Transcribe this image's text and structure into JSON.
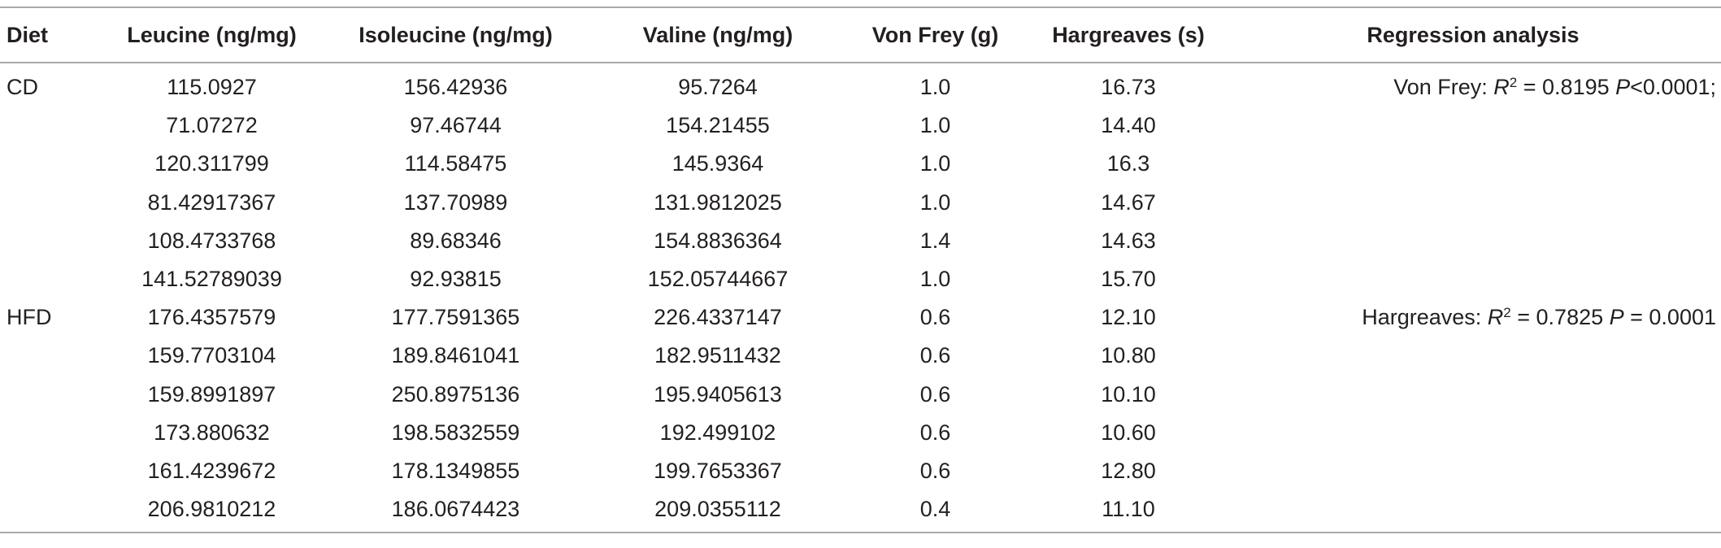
{
  "table": {
    "headers": [
      "Diet",
      "Leucine (ng/mg)",
      "Isoleucine (ng/mg)",
      "Valine (ng/mg)",
      "Von Frey (g)",
      "Hargreaves (s)",
      "Regression analysis"
    ],
    "rows": [
      {
        "diet": "CD",
        "leucine": "115.0927",
        "isoleucine": "156.42936",
        "valine": "95.7264",
        "vonfrey": "1.0",
        "hargreaves": "16.73"
      },
      {
        "diet": "",
        "leucine": "71.07272",
        "isoleucine": "97.46744",
        "valine": "154.21455",
        "vonfrey": "1.0",
        "hargreaves": "14.40"
      },
      {
        "diet": "",
        "leucine": "120.311799",
        "isoleucine": "114.58475",
        "valine": "145.9364",
        "vonfrey": "1.0",
        "hargreaves": "16.3"
      },
      {
        "diet": "",
        "leucine": "81.42917367",
        "isoleucine": "137.70989",
        "valine": "131.9812025",
        "vonfrey": "1.0",
        "hargreaves": "14.67"
      },
      {
        "diet": "",
        "leucine": "108.4733768",
        "isoleucine": "89.68346",
        "valine": "154.8836364",
        "vonfrey": "1.4",
        "hargreaves": "14.63"
      },
      {
        "diet": "",
        "leucine": "141.52789039",
        "isoleucine": "92.93815",
        "valine": "152.05744667",
        "vonfrey": "1.0",
        "hargreaves": "15.70"
      },
      {
        "diet": "HFD",
        "leucine": "176.4357579",
        "isoleucine": "177.7591365",
        "valine": "226.4337147",
        "vonfrey": "0.6",
        "hargreaves": "12.10"
      },
      {
        "diet": "",
        "leucine": "159.7703104",
        "isoleucine": "189.8461041",
        "valine": "182.9511432",
        "vonfrey": "0.6",
        "hargreaves": "10.80"
      },
      {
        "diet": "",
        "leucine": "159.8991897",
        "isoleucine": "250.8975136",
        "valine": "195.9405613",
        "vonfrey": "0.6",
        "hargreaves": "10.10"
      },
      {
        "diet": "",
        "leucine": "173.880632",
        "isoleucine": "198.5832559",
        "valine": "192.499102",
        "vonfrey": "0.6",
        "hargreaves": "10.60"
      },
      {
        "diet": "",
        "leucine": "161.4239672",
        "isoleucine": "178.1349855",
        "valine": "199.7653367",
        "vonfrey": "0.6",
        "hargreaves": "12.80"
      },
      {
        "diet": "",
        "leucine": "206.9810212",
        "isoleucine": "186.0674423",
        "valine": "209.0355112",
        "vonfrey": "0.4",
        "hargreaves": "11.10"
      }
    ],
    "regression": {
      "vonfrey": {
        "label": "Von Frey: ",
        "r": "R",
        "exp": "2",
        "eq": " = 0.8195 ",
        "p": "P",
        "pval": "<0.0001;"
      },
      "hargreaves": {
        "label": "Hargreaves: ",
        "r": "R",
        "exp": "2",
        "eq": " = 0.7825 ",
        "p": "P",
        "pval": " = 0.0001"
      }
    }
  }
}
